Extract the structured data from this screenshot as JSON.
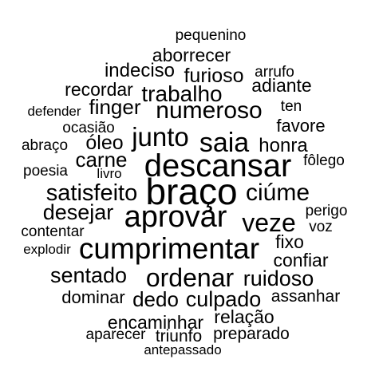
{
  "wordcloud": {
    "words": {
      "pequenino": "pequenino",
      "aborrecer": "aborrecer",
      "indeciso": "indeciso",
      "arrufo": "arrufo",
      "furioso": "furioso",
      "recordar": "recordar",
      "adiante": "adiante",
      "trabalho": "trabalho",
      "defender": "defender",
      "finger": "finger",
      "numeroso": "numeroso",
      "ten": "ten",
      "ocasiao": "ocasião",
      "favore": "favore",
      "junto": "junto",
      "saia": "saia",
      "abraco": "abraço",
      "oleo": "óleo",
      "honra": "honra",
      "carne": "carne",
      "folego": "fôlego",
      "poesia": "poesia",
      "livro": "livro",
      "descansar": "descansar",
      "satisfeito": "satisfeito",
      "braco": "braço",
      "ciume": "ciúme",
      "desejar": "desejar",
      "aprovar": "aprovar",
      "perigo": "perigo",
      "veze": "veze",
      "contentar": "contentar",
      "voz": "voz",
      "fixo": "fixo",
      "explodir": "explodir",
      "cumprimentar": "cumprimentar",
      "confiar": "confiar",
      "sentado": "sentado",
      "ordenar": "ordenar",
      "ruidoso": "ruidoso",
      "dominar": "dominar",
      "dedo": "dedo",
      "culpado": "culpado",
      "assanhar": "assanhar",
      "relacao": "relação",
      "encaminhar": "encaminhar",
      "aparecer": "aparecer",
      "triunfo": "triunfo",
      "preparado": "preparado",
      "antepassado": "antepassado"
    },
    "text_color": "#000000",
    "background_color": "#ffffff"
  }
}
